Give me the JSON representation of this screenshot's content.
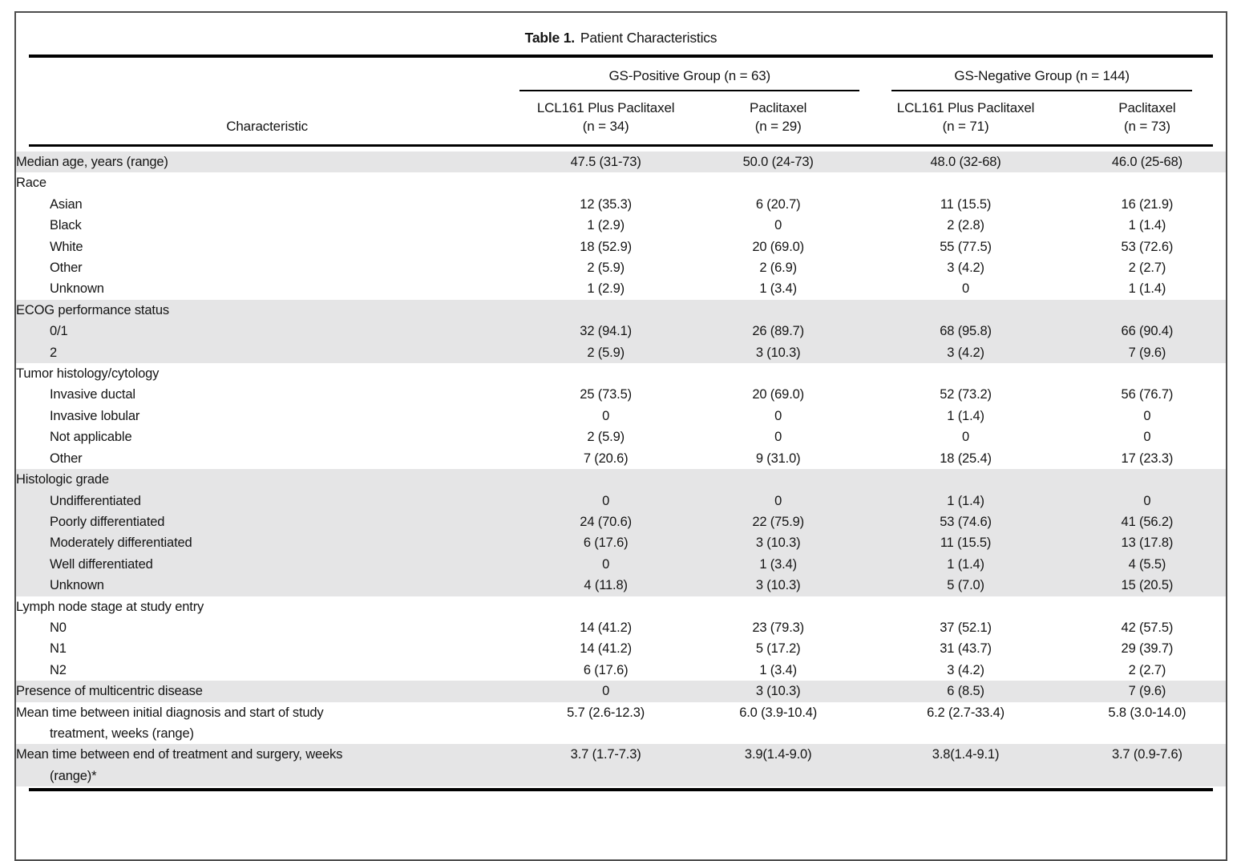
{
  "colors": {
    "row_shading": "#e5e5e6",
    "rule": "#000000",
    "frame_border": "#4d4d4d"
  },
  "table": {
    "title_bold": "Table 1.",
    "title_rest": "Patient Characteristics",
    "char_header": "Characteristic",
    "groups": [
      {
        "label": "GS-Positive Group (n = 63)",
        "subcolumns": [
          {
            "line1": "LCL161 Plus Paclitaxel",
            "line2": "(n = 34)"
          },
          {
            "line1": "Paclitaxel",
            "line2": "(n = 29)"
          }
        ]
      },
      {
        "label": "GS-Negative Group (n = 144)",
        "subcolumns": [
          {
            "line1": "LCL161 Plus Paclitaxel",
            "line2": "(n = 71)"
          },
          {
            "line1": "Paclitaxel",
            "line2": "(n = 73)"
          }
        ]
      }
    ],
    "rows": [
      {
        "label": "Median age, years (range)",
        "indent": 0,
        "shaded": true,
        "values": [
          "47.5 (31-73)",
          "50.0 (24-73)",
          "48.0 (32-68)",
          "46.0 (25-68)"
        ]
      },
      {
        "label": "Race",
        "indent": 0,
        "shaded": false,
        "values": [
          "",
          "",
          "",
          ""
        ]
      },
      {
        "label": "Asian",
        "indent": 1,
        "shaded": false,
        "values": [
          "12 (35.3)",
          "6 (20.7)",
          "11 (15.5)",
          "16 (21.9)"
        ]
      },
      {
        "label": "Black",
        "indent": 1,
        "shaded": false,
        "values": [
          "1 (2.9)",
          "0",
          "2 (2.8)",
          "1 (1.4)"
        ]
      },
      {
        "label": "White",
        "indent": 1,
        "shaded": false,
        "values": [
          "18 (52.9)",
          "20 (69.0)",
          "55 (77.5)",
          "53 (72.6)"
        ]
      },
      {
        "label": "Other",
        "indent": 1,
        "shaded": false,
        "values": [
          "2 (5.9)",
          "2 (6.9)",
          "3 (4.2)",
          "2 (2.7)"
        ]
      },
      {
        "label": "Unknown",
        "indent": 1,
        "shaded": false,
        "values": [
          "1 (2.9)",
          "1 (3.4)",
          "0",
          "1 (1.4)"
        ]
      },
      {
        "label": "ECOG performance status",
        "indent": 0,
        "shaded": true,
        "values": [
          "",
          "",
          "",
          ""
        ]
      },
      {
        "label": "0/1",
        "indent": 1,
        "shaded": true,
        "values": [
          "32 (94.1)",
          "26 (89.7)",
          "68 (95.8)",
          "66 (90.4)"
        ]
      },
      {
        "label": "2",
        "indent": 1,
        "shaded": true,
        "values": [
          "2 (5.9)",
          "3 (10.3)",
          "3 (4.2)",
          "7 (9.6)"
        ]
      },
      {
        "label": "Tumor histology/cytology",
        "indent": 0,
        "shaded": false,
        "values": [
          "",
          "",
          "",
          ""
        ]
      },
      {
        "label": "Invasive ductal",
        "indent": 1,
        "shaded": false,
        "values": [
          "25 (73.5)",
          "20 (69.0)",
          "52 (73.2)",
          "56 (76.7)"
        ]
      },
      {
        "label": "Invasive lobular",
        "indent": 1,
        "shaded": false,
        "values": [
          "0",
          "0",
          "1 (1.4)",
          "0"
        ]
      },
      {
        "label": "Not applicable",
        "indent": 1,
        "shaded": false,
        "values": [
          "2 (5.9)",
          "0",
          "0",
          "0"
        ]
      },
      {
        "label": "Other",
        "indent": 1,
        "shaded": false,
        "values": [
          "7 (20.6)",
          "9 (31.0)",
          "18 (25.4)",
          "17 (23.3)"
        ]
      },
      {
        "label": "Histologic grade",
        "indent": 0,
        "shaded": true,
        "values": [
          "",
          "",
          "",
          ""
        ]
      },
      {
        "label": "Undifferentiated",
        "indent": 1,
        "shaded": true,
        "values": [
          "0",
          "0",
          "1 (1.4)",
          "0"
        ]
      },
      {
        "label": "Poorly differentiated",
        "indent": 1,
        "shaded": true,
        "values": [
          "24 (70.6)",
          "22 (75.9)",
          "53 (74.6)",
          "41 (56.2)"
        ]
      },
      {
        "label": "Moderately differentiated",
        "indent": 1,
        "shaded": true,
        "values": [
          "6 (17.6)",
          "3 (10.3)",
          "11 (15.5)",
          "13 (17.8)"
        ]
      },
      {
        "label": "Well differentiated",
        "indent": 1,
        "shaded": true,
        "values": [
          "0",
          "1 (3.4)",
          "1 (1.4)",
          "4 (5.5)"
        ]
      },
      {
        "label": "Unknown",
        "indent": 1,
        "shaded": true,
        "values": [
          "4 (11.8)",
          "3 (10.3)",
          "5 (7.0)",
          "15 (20.5)"
        ]
      },
      {
        "label": "Lymph node stage at study entry",
        "indent": 0,
        "shaded": false,
        "values": [
          "",
          "",
          "",
          ""
        ]
      },
      {
        "label": "N0",
        "indent": 1,
        "shaded": false,
        "values": [
          "14 (41.2)",
          "23 (79.3)",
          "37 (52.1)",
          "42 (57.5)"
        ]
      },
      {
        "label": "N1",
        "indent": 1,
        "shaded": false,
        "values": [
          "14 (41.2)",
          "5 (17.2)",
          "31 (43.7)",
          "29 (39.7)"
        ]
      },
      {
        "label": "N2",
        "indent": 1,
        "shaded": false,
        "values": [
          "6 (17.6)",
          "1 (3.4)",
          "3 (4.2)",
          "2 (2.7)"
        ]
      },
      {
        "label": "Presence of multicentric disease",
        "indent": 0,
        "shaded": true,
        "values": [
          "0",
          "3 (10.3)",
          "6 (8.5)",
          "7 (9.6)"
        ]
      },
      {
        "label": "Mean time between initial diagnosis and start of study\ntreatment, weeks (range)",
        "indent": 0,
        "shaded": false,
        "values": [
          "5.7 (2.6-12.3)",
          "6.0 (3.9-10.4)",
          "6.2 (2.7-33.4)",
          "5.8 (3.0-14.0)"
        ]
      },
      {
        "label": "Mean time between end of treatment and surgery, weeks\n(range)*",
        "indent": 0,
        "shaded": true,
        "values": [
          "3.7 (1.7-7.3)",
          "3.9(1.4-9.0)",
          "3.8(1.4-9.1)",
          "3.7 (0.9-7.6)"
        ]
      }
    ]
  }
}
